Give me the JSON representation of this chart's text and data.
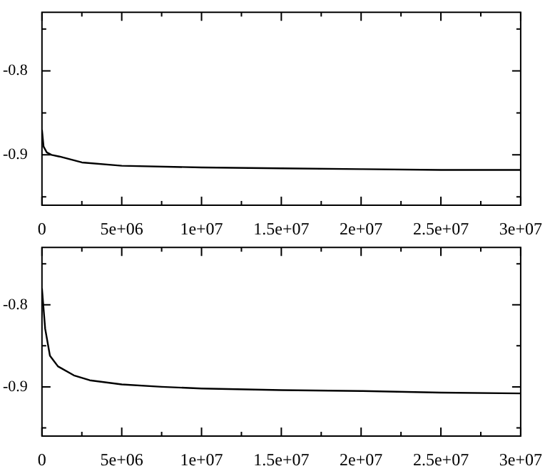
{
  "chart_data": [
    {
      "type": "line",
      "color": "#000000",
      "x": [
        0,
        100000,
        300000,
        600000,
        1100000,
        2500000,
        5000000,
        10000000,
        15000000,
        20000000,
        25000000,
        30000000
      ],
      "values": [
        -0.87,
        -0.89,
        -0.897,
        -0.9,
        -0.902,
        -0.909,
        -0.913,
        -0.915,
        -0.916,
        -0.917,
        -0.918,
        -0.918
      ],
      "xlim": [
        0,
        30000000
      ],
      "ylim": [
        -0.96,
        -0.73
      ],
      "xticks": [
        0,
        {
          "value": 2500000,
          "label": null
        },
        {
          "value": 5000000,
          "label": "5e+06"
        },
        {
          "value": 7500000,
          "label": null
        },
        {
          "value": 10000000,
          "label": "1e+07"
        },
        {
          "value": 12500000,
          "label": null
        },
        {
          "value": 15000000,
          "label": "1.5e+07"
        },
        {
          "value": 17500000,
          "label": null
        },
        {
          "value": 20000000,
          "label": "2e+07"
        },
        {
          "value": 22500000,
          "label": null
        },
        {
          "value": 25000000,
          "label": "2.5e+07"
        },
        {
          "value": 27500000,
          "label": null
        },
        {
          "value": 30000000,
          "label": "3e+07"
        }
      ],
      "yticks": [
        {
          "value": -0.95,
          "label": null
        },
        {
          "value": -0.9,
          "label": "-0.9"
        },
        {
          "value": -0.85,
          "label": null
        },
        {
          "value": -0.8,
          "label": "-0.8"
        },
        {
          "value": -0.75,
          "label": null
        }
      ]
    },
    {
      "type": "line",
      "color": "#000000",
      "x": [
        0,
        200000,
        500000,
        1000000,
        2000000,
        3000000,
        5000000,
        7500000,
        10000000,
        15000000,
        20000000,
        25000000,
        30000000
      ],
      "values": [
        -0.78,
        -0.829,
        -0.862,
        -0.875,
        -0.886,
        -0.892,
        -0.897,
        -0.9,
        -0.902,
        -0.904,
        -0.905,
        -0.907,
        -0.908
      ],
      "xlim": [
        0,
        30000000
      ],
      "ylim": [
        -0.96,
        -0.73
      ],
      "xticks": [
        0,
        {
          "value": 2500000,
          "label": null
        },
        {
          "value": 5000000,
          "label": "5e+06"
        },
        {
          "value": 7500000,
          "label": null
        },
        {
          "value": 10000000,
          "label": "1e+07"
        },
        {
          "value": 12500000,
          "label": null
        },
        {
          "value": 15000000,
          "label": "1.5e+07"
        },
        {
          "value": 17500000,
          "label": null
        },
        {
          "value": 20000000,
          "label": "2e+07"
        },
        {
          "value": 22500000,
          "label": null
        },
        {
          "value": 25000000,
          "label": "2.5e+07"
        },
        {
          "value": 27500000,
          "label": null
        },
        {
          "value": 30000000,
          "label": "3e+07"
        }
      ],
      "yticks": [
        {
          "value": -0.95,
          "label": null
        },
        {
          "value": -0.9,
          "label": "-0.9"
        },
        {
          "value": -0.85,
          "label": null
        },
        {
          "value": -0.8,
          "label": "-0.8"
        },
        {
          "value": -0.75,
          "label": null
        }
      ]
    }
  ]
}
